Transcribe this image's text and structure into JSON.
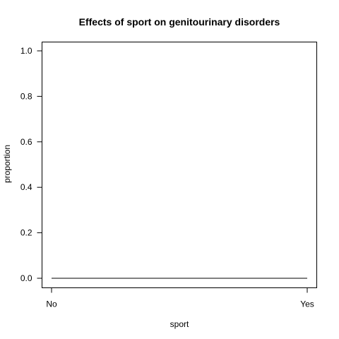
{
  "chart_data": {
    "type": "line",
    "title": "Effects of sport on genitourinary disorders",
    "xlabel": "sport",
    "ylabel": "proportion",
    "categories": [
      "No",
      "Yes"
    ],
    "ylim": [
      0,
      1
    ],
    "y_ticks": [
      "0.0",
      "0.2",
      "0.4",
      "0.6",
      "0.8",
      "1.0"
    ],
    "series": [
      {
        "values": [
          0.0,
          0.0
        ]
      }
    ],
    "grid": false,
    "legend": "none"
  },
  "colors": {
    "line": "#000000",
    "axis": "#000000",
    "background": "#ffffff"
  }
}
